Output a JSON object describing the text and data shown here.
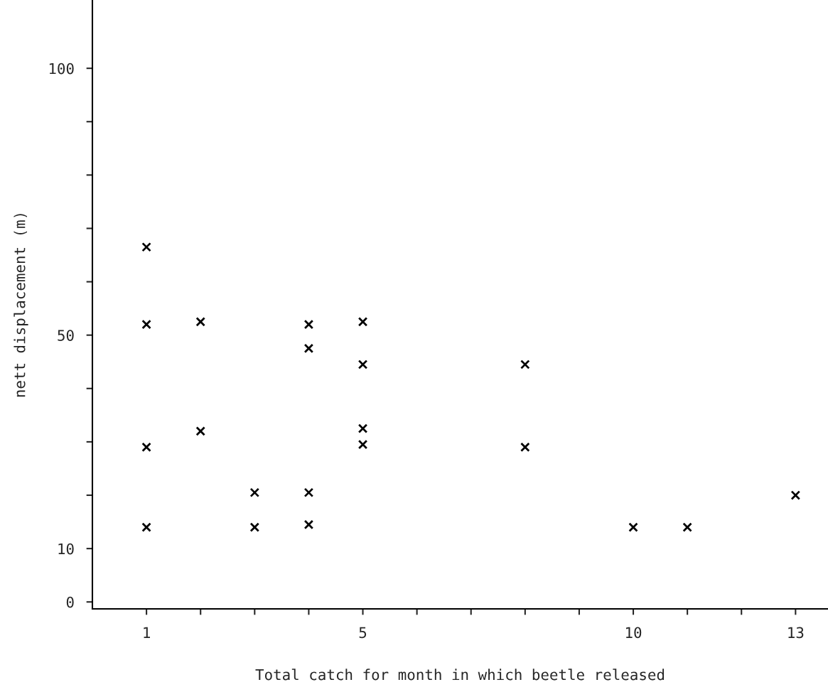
{
  "chart_data": {
    "type": "scatter",
    "xlabel": "Total catch for month in which beetle released",
    "ylabel": "nett displacement (m)",
    "x": [
      1,
      1,
      1,
      1,
      2,
      2,
      3,
      3,
      4,
      4,
      4,
      4,
      5,
      5,
      5,
      5,
      8,
      8,
      10,
      11,
      13
    ],
    "series": [
      {
        "color": "#000000",
        "values": [
          66.5,
          52,
          29,
          14,
          52.5,
          32,
          20.5,
          14,
          52,
          47.5,
          20.5,
          14.5,
          52.5,
          44.5,
          32.5,
          29.5,
          44.5,
          29,
          14,
          14,
          20
        ]
      }
    ],
    "marker": "cross",
    "grid": false,
    "xlim": [
      0,
      13.6
    ],
    "ylim": [
      -1.3,
      112.8
    ],
    "xticks": [
      {
        "value": 1,
        "label": "1"
      },
      {
        "value": 2,
        "label": null
      },
      {
        "value": 3,
        "label": null
      },
      {
        "value": 4,
        "label": null
      },
      {
        "value": 5,
        "label": "5"
      },
      {
        "value": 6,
        "label": null
      },
      {
        "value": 7,
        "label": null
      },
      {
        "value": 8,
        "label": null
      },
      {
        "value": 9,
        "label": null
      },
      {
        "value": 10,
        "label": "10"
      },
      {
        "value": 11,
        "label": null
      },
      {
        "value": 12,
        "label": null
      },
      {
        "value": 13,
        "label": "13"
      }
    ],
    "yticks": [
      0,
      10,
      {
        "value": 20,
        "label": null
      },
      {
        "value": 30,
        "label": null
      },
      {
        "value": 40,
        "label": null
      },
      50,
      {
        "value": 60,
        "label": null
      },
      {
        "value": 70,
        "label": null
      },
      {
        "value": 80,
        "label": null
      },
      {
        "value": 90,
        "label": null
      },
      100
    ]
  }
}
